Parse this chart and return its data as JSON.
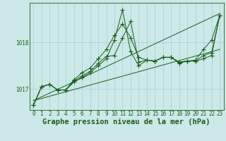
{
  "title": "Graphe pression niveau de la mer (hPa)",
  "background_color": "#cce8e8",
  "plot_bg_color": "#cce8e8",
  "grid_color": "#99cccc",
  "line_color": "#1a5e1a",
  "xlim": [
    -0.5,
    23.5
  ],
  "ylim": [
    1016.55,
    1018.85
  ],
  "yticks": [
    1017,
    1018
  ],
  "xticks": [
    0,
    1,
    2,
    3,
    4,
    5,
    6,
    7,
    8,
    9,
    10,
    11,
    12,
    13,
    14,
    15,
    16,
    17,
    18,
    19,
    20,
    21,
    22,
    23
  ],
  "series": [
    [
      1016.65,
      1017.05,
      1017.1,
      1016.98,
      1016.98,
      1017.15,
      1017.25,
      1017.35,
      1017.5,
      1017.65,
      1018.05,
      1018.7,
      1017.8,
      1017.5,
      1017.62,
      1017.6,
      1017.68,
      1017.68,
      1017.55,
      1017.6,
      1017.62,
      1017.85,
      1018.05,
      1018.58
    ],
    [
      1016.65,
      1017.05,
      1017.1,
      1016.98,
      1016.98,
      1017.2,
      1017.35,
      1017.45,
      1017.65,
      1017.85,
      1018.15,
      1018.4,
      1018.1,
      1017.68,
      1017.62,
      1017.6,
      1017.68,
      1017.68,
      1017.58,
      1017.6,
      1017.6,
      1017.65,
      1017.72,
      1018.58
    ],
    [
      1016.65,
      1017.05,
      1017.1,
      1016.98,
      1016.98,
      1017.18,
      1017.28,
      1017.38,
      1017.55,
      1017.7,
      1017.72,
      1018.1,
      1018.45,
      1017.58,
      1017.62,
      1017.6,
      1017.68,
      1017.68,
      1017.57,
      1017.6,
      1017.6,
      1017.72,
      1017.78,
      1018.58
    ]
  ],
  "straight_lines": [
    [
      [
        0,
        23
      ],
      [
        1016.75,
        1018.62
      ]
    ],
    [
      [
        0,
        23
      ],
      [
        1016.75,
        1017.85
      ]
    ]
  ],
  "font_color": "#1a5e1a",
  "title_fontsize": 7.5,
  "tick_fontsize": 5.5,
  "marker": "+",
  "marker_size": 4.0,
  "linewidth": 0.7
}
